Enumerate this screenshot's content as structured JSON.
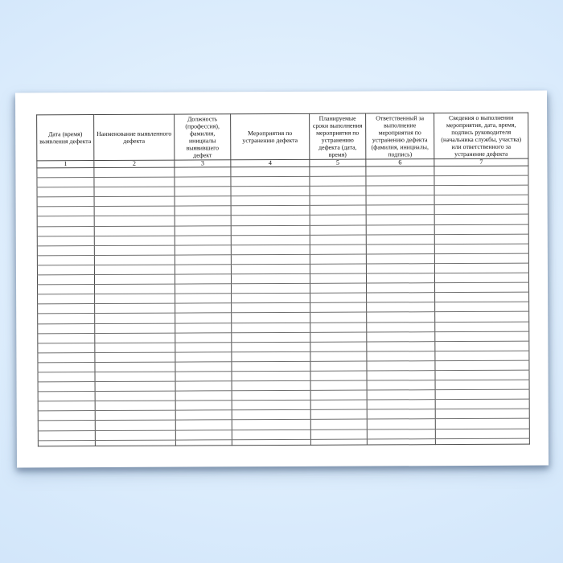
{
  "scene": {
    "background_edge_color": "#cde2f8",
    "background_center_color": "#eff6fe",
    "paper_color": "#ffffff",
    "line_color": "#4e4e4e"
  },
  "table": {
    "column_headers": [
      "Дата (время) выявления дефекта",
      "Наименование выявленного дефекта",
      "Должность (профессия), фамилия, инициалы выявившего дефект",
      "Мероприятия по устранению дефекта",
      "Планируемые сроки выполнения мероприятия по устранению дефекта (дата, время)",
      "Ответственный за выполнение мероприятия по устранению дефекта (фамилия, инициалы, подпись)",
      "Сведения о выполнении мероприятия, дата, время, подпись руководителя (начальника службы, участка) или ответственного за устранение дефекта"
    ],
    "column_numbers": [
      "1",
      "2",
      "3",
      "4",
      "5",
      "6",
      "7"
    ],
    "empty_row_count": 29
  }
}
